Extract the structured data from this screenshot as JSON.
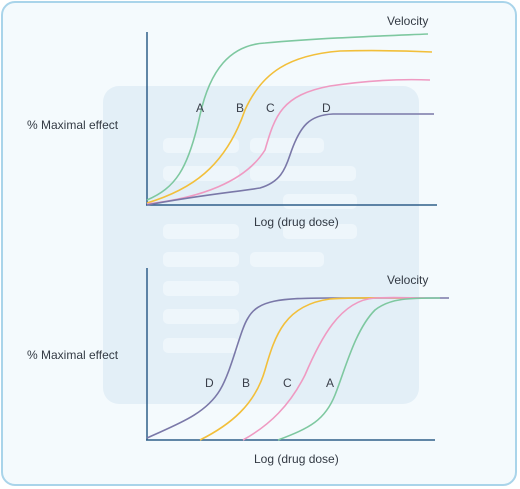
{
  "colors": {
    "axis": "#2f5f8a",
    "green": "#7ec8a0",
    "yellow": "#f2bf3a",
    "pink": "#ef9ac2",
    "purple": "#7a78a8",
    "watermark": "#e2eef6",
    "watermark_bar": "#eef6fb"
  },
  "top_chart": {
    "velocity_label": "Velocity",
    "y_label": "% Maximal effect",
    "x_label": "Log (drug dose)",
    "curve_labels": [
      "A",
      "B",
      "C",
      "D"
    ]
  },
  "bottom_chart": {
    "velocity_label": "Velocity",
    "y_label": "% Maximal effect",
    "x_label": "Log (drug dose)",
    "curve_labels": [
      "D",
      "B",
      "C",
      "A"
    ]
  }
}
